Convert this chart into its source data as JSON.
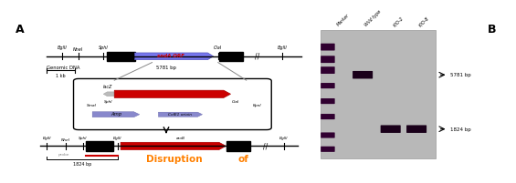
{
  "panel_A_label": "A",
  "panel_B_label": "B",
  "bg_color": "#ffffff",
  "line_color": "#000000",
  "genomic_dna_label": "Genomic DNA",
  "scale_bar_label": "1 kb",
  "genomic_bp_label": "5781 bp",
  "sndA_orf_label": "sndA ORF",
  "sndA_orf_fill": "#8888ff",
  "aroB_label": "araB",
  "aroB_label2": "aroB",
  "lacZ_label": "lacZ",
  "SmaI_label": "SmaI",
  "Amp_label": "Amp",
  "ColE1_label": "ColE1 orioin",
  "KpnI_label": "KpnI",
  "disruption_label": "Disruption",
  "of_label": "of",
  "disruption_color": "#ff8000",
  "disruption_bp": "1824 bp",
  "probe_label": "probe",
  "probe_color": "#cc0000",
  "red_arrow_color": "#cc0000",
  "blue_arrow_color": "#8888cc",
  "gray_arrow_color": "#aaaaaa",
  "lane_labels": [
    "Marker",
    "Wild type",
    "K/O-2",
    "K/O-8"
  ],
  "size_labels": [
    "5781 bp",
    "1824 bp"
  ],
  "blot_bg": "#b8b8b8",
  "band_dark": "#1a001a",
  "marker_dark": "#300030"
}
